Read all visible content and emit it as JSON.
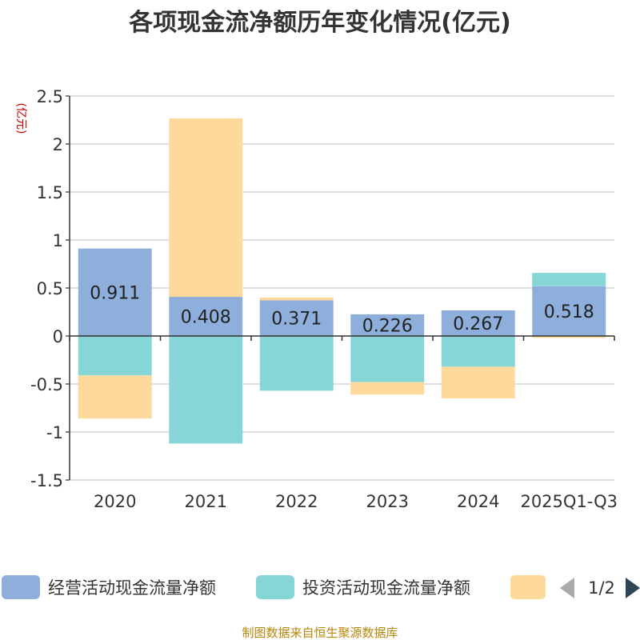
{
  "chart_data": {
    "type": "bar",
    "stacked": true,
    "title": "各项现金流净额历年变化情况(亿元)",
    "unit_label": "(亿元)",
    "categories": [
      "2020",
      "2021",
      "2022",
      "2023",
      "2024",
      "2025Q1-Q3"
    ],
    "ylim": [
      -1.5,
      2.5
    ],
    "yticks": [
      2.5,
      2,
      1.5,
      1,
      0.5,
      0,
      -0.5,
      -1,
      -1.5
    ],
    "ytick_labels": [
      "2.5",
      "2",
      "1.5",
      "1",
      "0.5",
      "0",
      "-0.5",
      "-1",
      "-1.5"
    ],
    "grid": true,
    "series": [
      {
        "name": "经营活动现金流量净额",
        "color": "#8eaedb",
        "values": [
          0.911,
          0.408,
          0.371,
          0.226,
          0.267,
          0.518
        ],
        "labels": [
          "0.911",
          "0.408",
          "0.371",
          "0.226",
          "0.267",
          "0.518"
        ]
      },
      {
        "name": "投资活动现金流量净额",
        "color": "#86d6d8",
        "values": [
          -0.41,
          -1.12,
          -0.57,
          -0.48,
          -0.32,
          0.14
        ]
      },
      {
        "name": "",
        "color": "#fdd99b",
        "values": [
          -0.45,
          1.86,
          0.03,
          -0.13,
          -0.33,
          -0.02
        ]
      }
    ]
  },
  "legend": {
    "page_indicator": "1/2",
    "prev_color": "#aaaaaa",
    "next_color": "#2f4554"
  },
  "source_text": "制图数据来自恒生聚源数据库"
}
